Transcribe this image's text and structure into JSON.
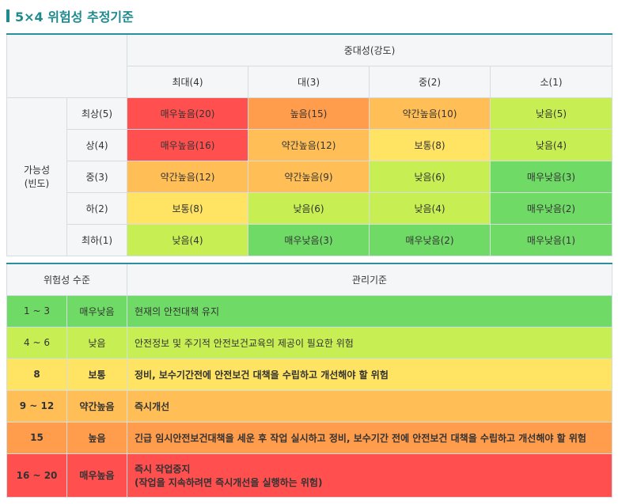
{
  "title": "5×4 위험성 추정기준",
  "colors": {
    "accent": "#1e8a8e",
    "very_high": "#ff4f4f",
    "high": "#ff9d4d",
    "medium": "#ffbf56",
    "normal": "#ffe463",
    "low": "#c7ef53",
    "very_low": "#6fdb66"
  },
  "matrix": {
    "severity_header": "중대성(강도)",
    "severity_columns": [
      "최대(4)",
      "대(3)",
      "중(2)",
      "소(1)"
    ],
    "likelihood_header_line1": "가능성",
    "likelihood_header_line2": "(빈도)",
    "rows": [
      {
        "label": "최상(5)",
        "cells": [
          "매우높음(20)",
          "높음(15)",
          "약간높음(10)",
          "낮음(5)"
        ],
        "levels": [
          "vh",
          "h",
          "m",
          "l"
        ]
      },
      {
        "label": "상(4)",
        "cells": [
          "매우높음(16)",
          "약간높음(12)",
          "보통(8)",
          "낮음(4)"
        ],
        "levels": [
          "vh",
          "m",
          "n",
          "l"
        ]
      },
      {
        "label": "중(3)",
        "cells": [
          "약간높음(12)",
          "약간높음(9)",
          "낮음(6)",
          "매우낮음(3)"
        ],
        "levels": [
          "m",
          "m",
          "l",
          "vl"
        ]
      },
      {
        "label": "하(2)",
        "cells": [
          "보통(8)",
          "낮음(6)",
          "낮음(4)",
          "매우낮음(2)"
        ],
        "levels": [
          "n",
          "l",
          "l",
          "vl"
        ]
      },
      {
        "label": "최하(1)",
        "cells": [
          "낮음(4)",
          "매우낮음(3)",
          "매우낮음(2)",
          "매우낮음(1)"
        ],
        "levels": [
          "l",
          "vl",
          "vl",
          "vl"
        ]
      }
    ]
  },
  "levels_table": {
    "header_level": "위험성 수준",
    "header_criteria": "관리기준",
    "rows": [
      {
        "range": "1 ~ 3",
        "name": "매우낮음",
        "criteria_line1": "현재의 안전대책 유지",
        "criteria_line2": "",
        "level": "vl",
        "bold": false
      },
      {
        "range": "4 ~ 6",
        "name": "낮음",
        "criteria_line1": "안전정보 및 주기적 안전보건교육의 제공이 필요한 위험",
        "criteria_line2": "",
        "level": "l",
        "bold": false
      },
      {
        "range": "8",
        "name": "보통",
        "criteria_line1": "정비, 보수기간전에 안전보건 대책을 수립하고 개선해야 할 위험",
        "criteria_line2": "",
        "level": "n",
        "bold": true
      },
      {
        "range": "9 ~ 12",
        "name": "약간높음",
        "criteria_line1": "즉시개선",
        "criteria_line2": "",
        "level": "m",
        "bold": true
      },
      {
        "range": "15",
        "name": "높음",
        "criteria_line1": "긴급 임시안전보건대책을 세운 후 작업 실시하고 정비, 보수기간 전에 안전보건 대책을 수립하고 개선해야 할 위험",
        "criteria_line2": "",
        "level": "h",
        "bold": true
      },
      {
        "range": "16 ~ 20",
        "name": "매우높음",
        "criteria_line1": "즉시 작업중지",
        "criteria_line2": "(작업을 지속하려면 즉시개선을 실행하는 위험)",
        "level": "vh",
        "bold": true
      }
    ]
  }
}
